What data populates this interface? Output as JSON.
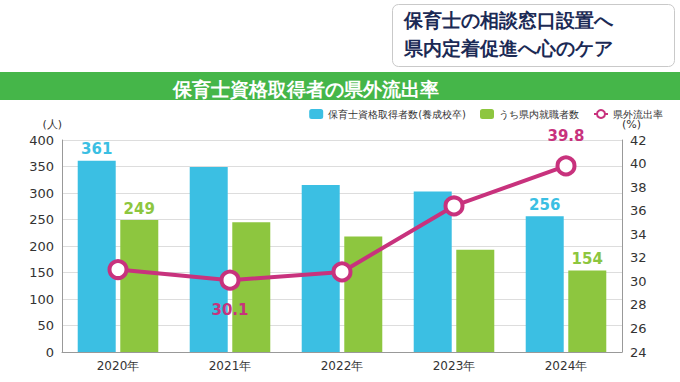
{
  "headline": [
    "保育士の相談窓口設置へ",
    "県内定着促進へ心のケア"
  ],
  "chart_data": {
    "type": "bar",
    "title": "保育士資格取得者の県外流出率",
    "categories": [
      "2020年",
      "2021年",
      "2022年",
      "2023年",
      "2024年"
    ],
    "series": [
      {
        "name": "保育士資格取得者数(養成校卒)",
        "type": "bar",
        "color": "#3bbfe3",
        "values": [
          361,
          349,
          315,
          303,
          256
        ],
        "value_labels": [
          "361",
          null,
          null,
          null,
          "256"
        ]
      },
      {
        "name": "うち県内就職者数",
        "type": "bar",
        "color": "#8dc63f",
        "values": [
          249,
          245,
          218,
          193,
          154
        ],
        "value_labels": [
          "249",
          null,
          null,
          null,
          "154"
        ]
      },
      {
        "name": "県外流出率",
        "type": "line",
        "axis": "y2",
        "color": "#c8327d",
        "marker": "circle",
        "values": [
          31.0,
          30.1,
          30.8,
          36.4,
          39.8
        ],
        "value_labels": [
          null,
          "30.1",
          null,
          null,
          "39.8"
        ]
      }
    ],
    "y_label": "(人)",
    "y2_label": "(%)",
    "ylim": [
      0,
      400
    ],
    "yticks": [
      0,
      50,
      100,
      150,
      200,
      250,
      300,
      350,
      400
    ],
    "y2lim": [
      24,
      42
    ],
    "y2ticks": [
      24,
      26,
      28,
      30,
      32,
      34,
      36,
      38,
      40,
      42
    ],
    "grid": true,
    "legend": "upper right",
    "data_labels": true
  }
}
